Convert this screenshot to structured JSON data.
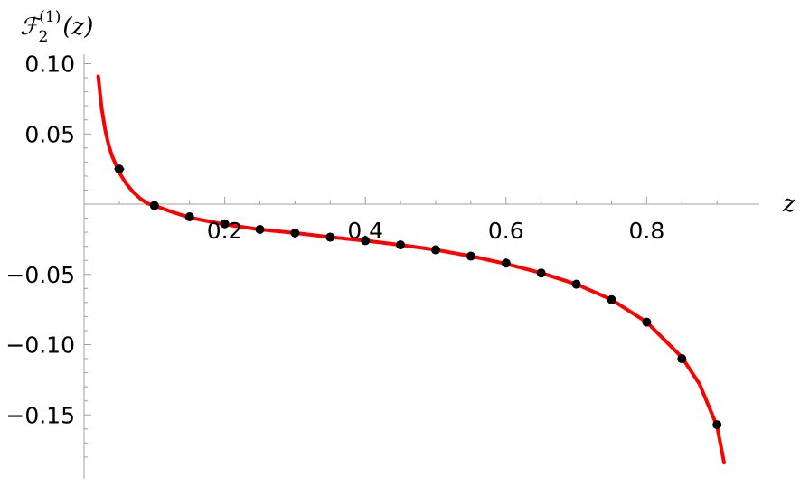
{
  "chart_data": {
    "type": "line",
    "title": "",
    "xlabel": "z",
    "ylabel": "F_2^(1)(z)",
    "ylabel_parts": {
      "main": "ℱ",
      "sub": "2",
      "sup": "(1)",
      "arg": "(z)"
    },
    "xlim": [
      0.0,
      0.95
    ],
    "ylim": [
      -0.19,
      0.1
    ],
    "x_ticks": [
      0.2,
      0.4,
      0.6,
      0.8
    ],
    "x_tick_labels": [
      "0.2",
      "0.4",
      "0.6",
      "0.8"
    ],
    "y_ticks": [
      0.1,
      0.05,
      -0.05,
      -0.1,
      -0.15
    ],
    "y_tick_labels": [
      "0.10",
      "0.05",
      "−0.05",
      "−0.10",
      "−0.15"
    ],
    "grid": false,
    "legend": "none",
    "series": [
      {
        "kind": "curve",
        "color": "#ff0000",
        "x": [
          0.02,
          0.025,
          0.03,
          0.035,
          0.04,
          0.05,
          0.06,
          0.07,
          0.08,
          0.09,
          0.1,
          0.125,
          0.15,
          0.2,
          0.25,
          0.3,
          0.35,
          0.4,
          0.45,
          0.5,
          0.55,
          0.6,
          0.65,
          0.7,
          0.75,
          0.8,
          0.85,
          0.875,
          0.9,
          0.91
        ],
        "y": [
          0.091,
          0.068,
          0.053,
          0.042,
          0.034,
          0.0225,
          0.0145,
          0.0085,
          0.004,
          0.0005,
          -0.001,
          -0.0055,
          -0.0095,
          -0.0145,
          -0.018,
          -0.0205,
          -0.0235,
          -0.026,
          -0.029,
          -0.0325,
          -0.037,
          -0.0425,
          -0.049,
          -0.057,
          -0.068,
          -0.084,
          -0.109,
          -0.128,
          -0.158,
          -0.184
        ]
      },
      {
        "kind": "points",
        "color": "#000000",
        "x": [
          0.05,
          0.1,
          0.15,
          0.2,
          0.25,
          0.3,
          0.35,
          0.4,
          0.45,
          0.5,
          0.55,
          0.6,
          0.65,
          0.7,
          0.75,
          0.8,
          0.85,
          0.9
        ],
        "y": [
          0.025,
          -0.001,
          -0.009,
          -0.014,
          -0.018,
          -0.0205,
          -0.0235,
          -0.026,
          -0.029,
          -0.0325,
          -0.037,
          -0.042,
          -0.049,
          -0.057,
          -0.068,
          -0.084,
          -0.11,
          -0.157
        ],
        "error_bar_x_halfwidth": [
          0.007,
          0.006,
          0,
          0,
          0,
          0,
          0,
          0,
          0,
          0,
          0,
          0,
          0,
          0,
          0,
          0,
          0,
          0
        ]
      }
    ]
  }
}
